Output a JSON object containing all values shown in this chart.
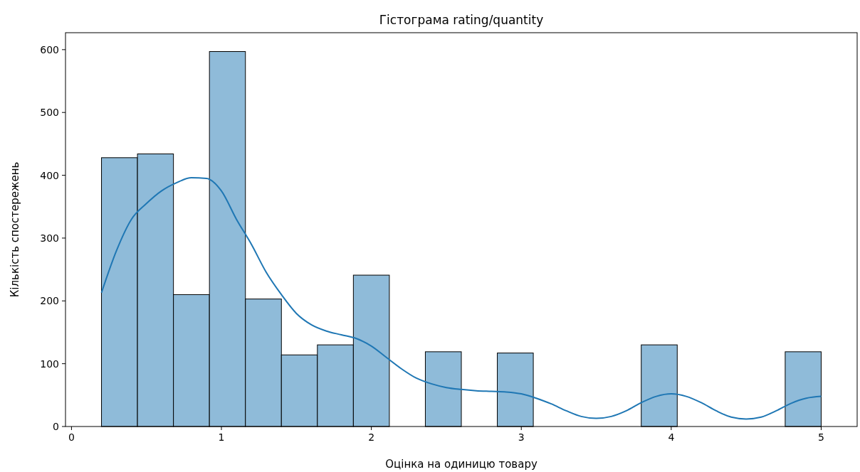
{
  "chart_data": {
    "type": "histogram",
    "title": "Гістограма rating/quantity",
    "xlabel": "Оцінка на одиницю товару",
    "ylabel": "Кількість спостережень",
    "bins": [
      0.2,
      0.44,
      0.68,
      0.92,
      1.16,
      1.4,
      1.64,
      1.88,
      2.12,
      2.36,
      2.6,
      2.84,
      3.08,
      3.32,
      3.56,
      3.8,
      4.04,
      4.28,
      4.52,
      4.76,
      5.0
    ],
    "values": [
      428,
      434,
      210,
      597,
      203,
      114,
      130,
      241,
      0,
      119,
      0,
      117,
      0,
      0,
      0,
      130,
      0,
      0,
      0,
      119
    ],
    "color": "#8fbbd9",
    "series": [
      {
        "type": "line",
        "color": "#1f77b4",
        "x": [
          0.2,
          0.3,
          0.4,
          0.5,
          0.6,
          0.7,
          0.8,
          0.9,
          1.0,
          1.1,
          1.2,
          1.3,
          1.4,
          1.5,
          1.6,
          1.7,
          1.8,
          1.9,
          2.0,
          2.1,
          2.2,
          2.3,
          2.4,
          2.5,
          2.6,
          2.7,
          2.8,
          2.9,
          3.0,
          3.1,
          3.2,
          3.3,
          3.4,
          3.5,
          3.6,
          3.7,
          3.8,
          3.9,
          4.0,
          4.1,
          4.2,
          4.3,
          4.4,
          4.5,
          4.6,
          4.7,
          4.8,
          4.9,
          5.0
        ],
        "values": [
          213,
          280,
          330,
          355,
          375,
          388,
          396,
          395,
          375,
          330,
          290,
          245,
          210,
          180,
          162,
          152,
          146,
          140,
          128,
          110,
          92,
          77,
          68,
          62,
          59,
          57,
          56,
          55,
          52,
          45,
          36,
          25,
          16,
          13,
          16,
          25,
          38,
          48,
          52,
          48,
          38,
          25,
          15,
          12,
          15,
          25,
          37,
          45,
          48
        ]
      }
    ],
    "xlim": [
      -0.04,
      5.24
    ],
    "ylim": [
      0,
      627
    ],
    "xticks": [
      0,
      1,
      2,
      3,
      4,
      5
    ],
    "yticks": [
      0,
      100,
      200,
      300,
      400,
      500,
      600
    ],
    "grid": false
  }
}
